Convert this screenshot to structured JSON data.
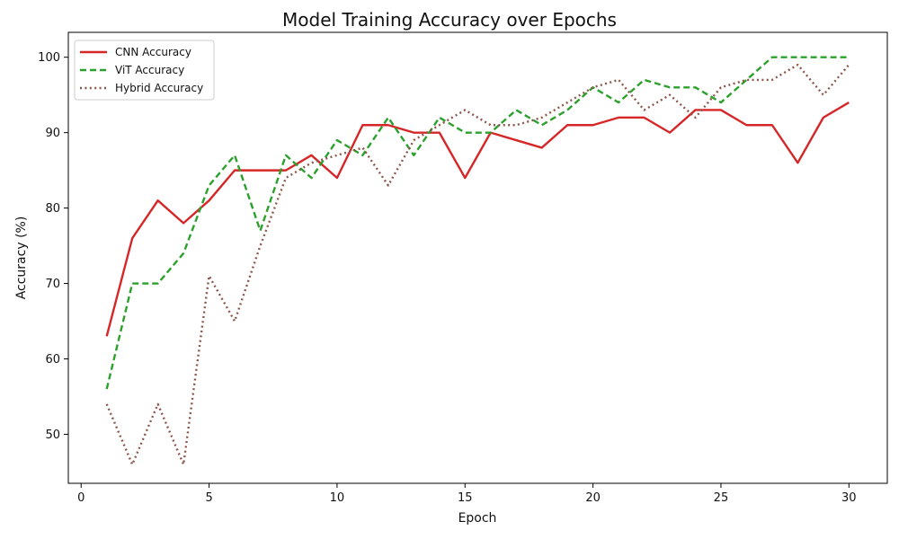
{
  "chart_data": {
    "type": "line",
    "title": "Model Training Accuracy over Epochs",
    "xlabel": "Epoch",
    "ylabel": "Accuracy (%)",
    "xlim": [
      -0.5,
      31.5
    ],
    "ylim": [
      43.5,
      103.3
    ],
    "xticks": [
      0,
      5,
      10,
      15,
      20,
      25,
      30
    ],
    "yticks": [
      50,
      60,
      70,
      80,
      90,
      100
    ],
    "grid": false,
    "legend_position": "top-left",
    "x": [
      1,
      2,
      3,
      4,
      5,
      6,
      7,
      8,
      9,
      10,
      11,
      12,
      13,
      14,
      15,
      16,
      17,
      18,
      19,
      20,
      21,
      22,
      23,
      24,
      25,
      26,
      27,
      28,
      29,
      30
    ],
    "series": [
      {
        "name": "CNN Accuracy",
        "color": "#d62728",
        "style": "solid",
        "values": [
          63,
          76,
          81,
          78,
          81,
          85,
          85,
          85,
          87,
          84,
          91,
          91,
          90,
          90,
          84,
          90,
          89,
          88,
          91,
          91,
          92,
          92,
          90,
          93,
          93,
          91,
          91,
          86,
          92,
          94
        ]
      },
      {
        "name": "ViT Accuracy",
        "color": "#2ca02c",
        "style": "dashed",
        "values": [
          56,
          70,
          70,
          74,
          83,
          87,
          77,
          87,
          84,
          89,
          87,
          92,
          87,
          92,
          90,
          90,
          93,
          91,
          93,
          96,
          94,
          97,
          96,
          96,
          94,
          97,
          100,
          100,
          100,
          100
        ]
      },
      {
        "name": "Hybrid Accuracy",
        "color": "#8c564b",
        "style": "dotted",
        "values": [
          54,
          46,
          54,
          46,
          71,
          65,
          75,
          84,
          86,
          87,
          88,
          83,
          89,
          91,
          93,
          91,
          91,
          92,
          94,
          96,
          97,
          93,
          95,
          92,
          96,
          97,
          97,
          99,
          95,
          99
        ]
      }
    ]
  }
}
